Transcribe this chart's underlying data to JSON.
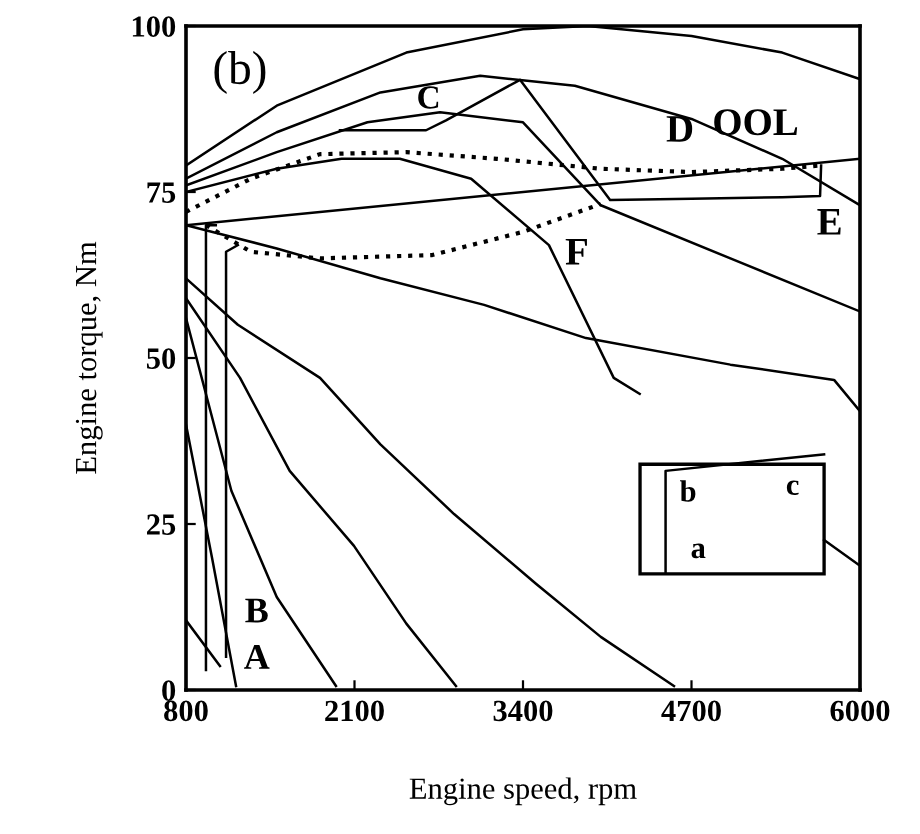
{
  "chart_data": {
    "type": "line",
    "xlabel": "Engine speed, rpm",
    "ylabel": "Engine torque, Nm",
    "xlim": [
      800,
      6000
    ],
    "xticks": [
      800,
      2100,
      3400,
      4700,
      6000
    ],
    "ylim": [
      0,
      100
    ],
    "yticks": [
      0,
      25,
      50,
      75,
      100
    ],
    "grid": false,
    "marker": "none",
    "series": [
      {
        "color": "#000000",
        "line_style": "solid",
        "x": [
          800,
          1500,
          2500,
          3400,
          3900,
          4700,
          5400,
          6000
        ],
        "values": [
          79,
          88,
          96,
          99.5,
          100,
          98.5,
          96,
          92
        ]
      },
      {
        "color": "#000000",
        "line_style": "solid",
        "x": [
          800,
          1500,
          2300,
          3070,
          3800,
          4700,
          5400,
          6000
        ],
        "values": [
          77,
          84,
          90,
          92.5,
          91,
          86,
          80,
          73
        ]
      },
      {
        "color": "#000000",
        "line_style": "solid",
        "x": [
          800,
          1500,
          2200,
          2760,
          3400,
          4000,
          5000,
          6000
        ],
        "values": [
          76,
          81,
          85.5,
          87,
          85.5,
          73,
          65,
          57
        ]
      },
      {
        "color": "#000000",
        "line_style": "solid",
        "x": [
          800,
          1500,
          2000,
          2450,
          3000,
          3600,
          4100,
          4300
        ],
        "values": [
          75,
          78.5,
          80,
          80,
          77,
          67,
          47,
          44.6
        ]
      },
      {
        "color": "#000000",
        "line_style": "solid",
        "x": [
          800,
          1500,
          2300,
          3100,
          3886,
          5000,
          5800,
          6000
        ],
        "values": [
          70,
          66.5,
          62,
          58,
          53,
          49,
          46.7,
          42
        ]
      },
      {
        "color": "#000000",
        "line_style": "solid",
        "x": [
          5723,
          6000
        ],
        "values": [
          22.6,
          18.7
        ]
      },
      {
        "color": "#000000",
        "line_style": "solid",
        "x": [
          800,
          1200,
          1834,
          2300,
          2868,
          3500,
          4000,
          4565
        ],
        "values": [
          62,
          55,
          47,
          37,
          26.5,
          16,
          8,
          0.6
        ]
      },
      {
        "color": "#000000",
        "line_style": "solid",
        "x": [
          800,
          1217,
          1600,
          2096,
          2500,
          2883
        ],
        "values": [
          59,
          47,
          33,
          21.7,
          10,
          0.6
        ]
      },
      {
        "color": "#000000",
        "line_style": "solid",
        "x": [
          800,
          1150,
          1500,
          1957
        ],
        "values": [
          56,
          30,
          14,
          0.6
        ]
      },
      {
        "color": "#000000",
        "line_style": "solid",
        "x": [
          800,
          1000,
          1186
        ],
        "values": [
          40,
          20,
          0.6
        ]
      },
      {
        "color": "#000000",
        "line_style": "solid",
        "x": [
          800,
          1062
        ],
        "values": [
          10.5,
          3.6
        ]
      },
      {
        "color": "#000000",
        "line_style": "solid",
        "x": [
          800,
          6000
        ],
        "values": [
          70,
          80
        ]
      },
      {
        "color": "#000000",
        "line_style": "solid",
        "x": [
          954,
          954,
          1030
        ],
        "values": [
          3,
          70,
          70
        ]
      },
      {
        "color": "#000000",
        "line_style": "solid",
        "x": [
          1109,
          1109,
          1200
        ],
        "values": [
          5,
          66,
          67
        ]
      },
      {
        "color": "#000000",
        "line_style": "solid",
        "x": [
          1988,
          2652,
          2806,
          3377,
          4072,
          4700,
          5400,
          5692,
          5700
        ],
        "values": [
          84.3,
          84.3,
          85.8,
          91.9,
          73.8,
          74,
          74.2,
          74.4,
          79
        ]
      },
      {
        "color": "#000000",
        "line_style": "dotted",
        "x": [
          800,
          1300,
          1834,
          2500,
          3200,
          4000,
          4700,
          5400,
          5700
        ],
        "values": [
          72,
          77,
          80.7,
          81,
          80,
          78.5,
          78,
          78.5,
          79
        ]
      },
      {
        "color": "#000000",
        "line_style": "dotted",
        "x": [
          954,
          1300,
          1834,
          2700,
          3400,
          4000
        ],
        "values": [
          70,
          66,
          65,
          65.5,
          69,
          73.2
        ]
      }
    ],
    "annotations": [
      "(b)",
      "C",
      "D",
      "OOL",
      "E",
      "F",
      "B",
      "A",
      "a",
      "b",
      "c"
    ]
  }
}
